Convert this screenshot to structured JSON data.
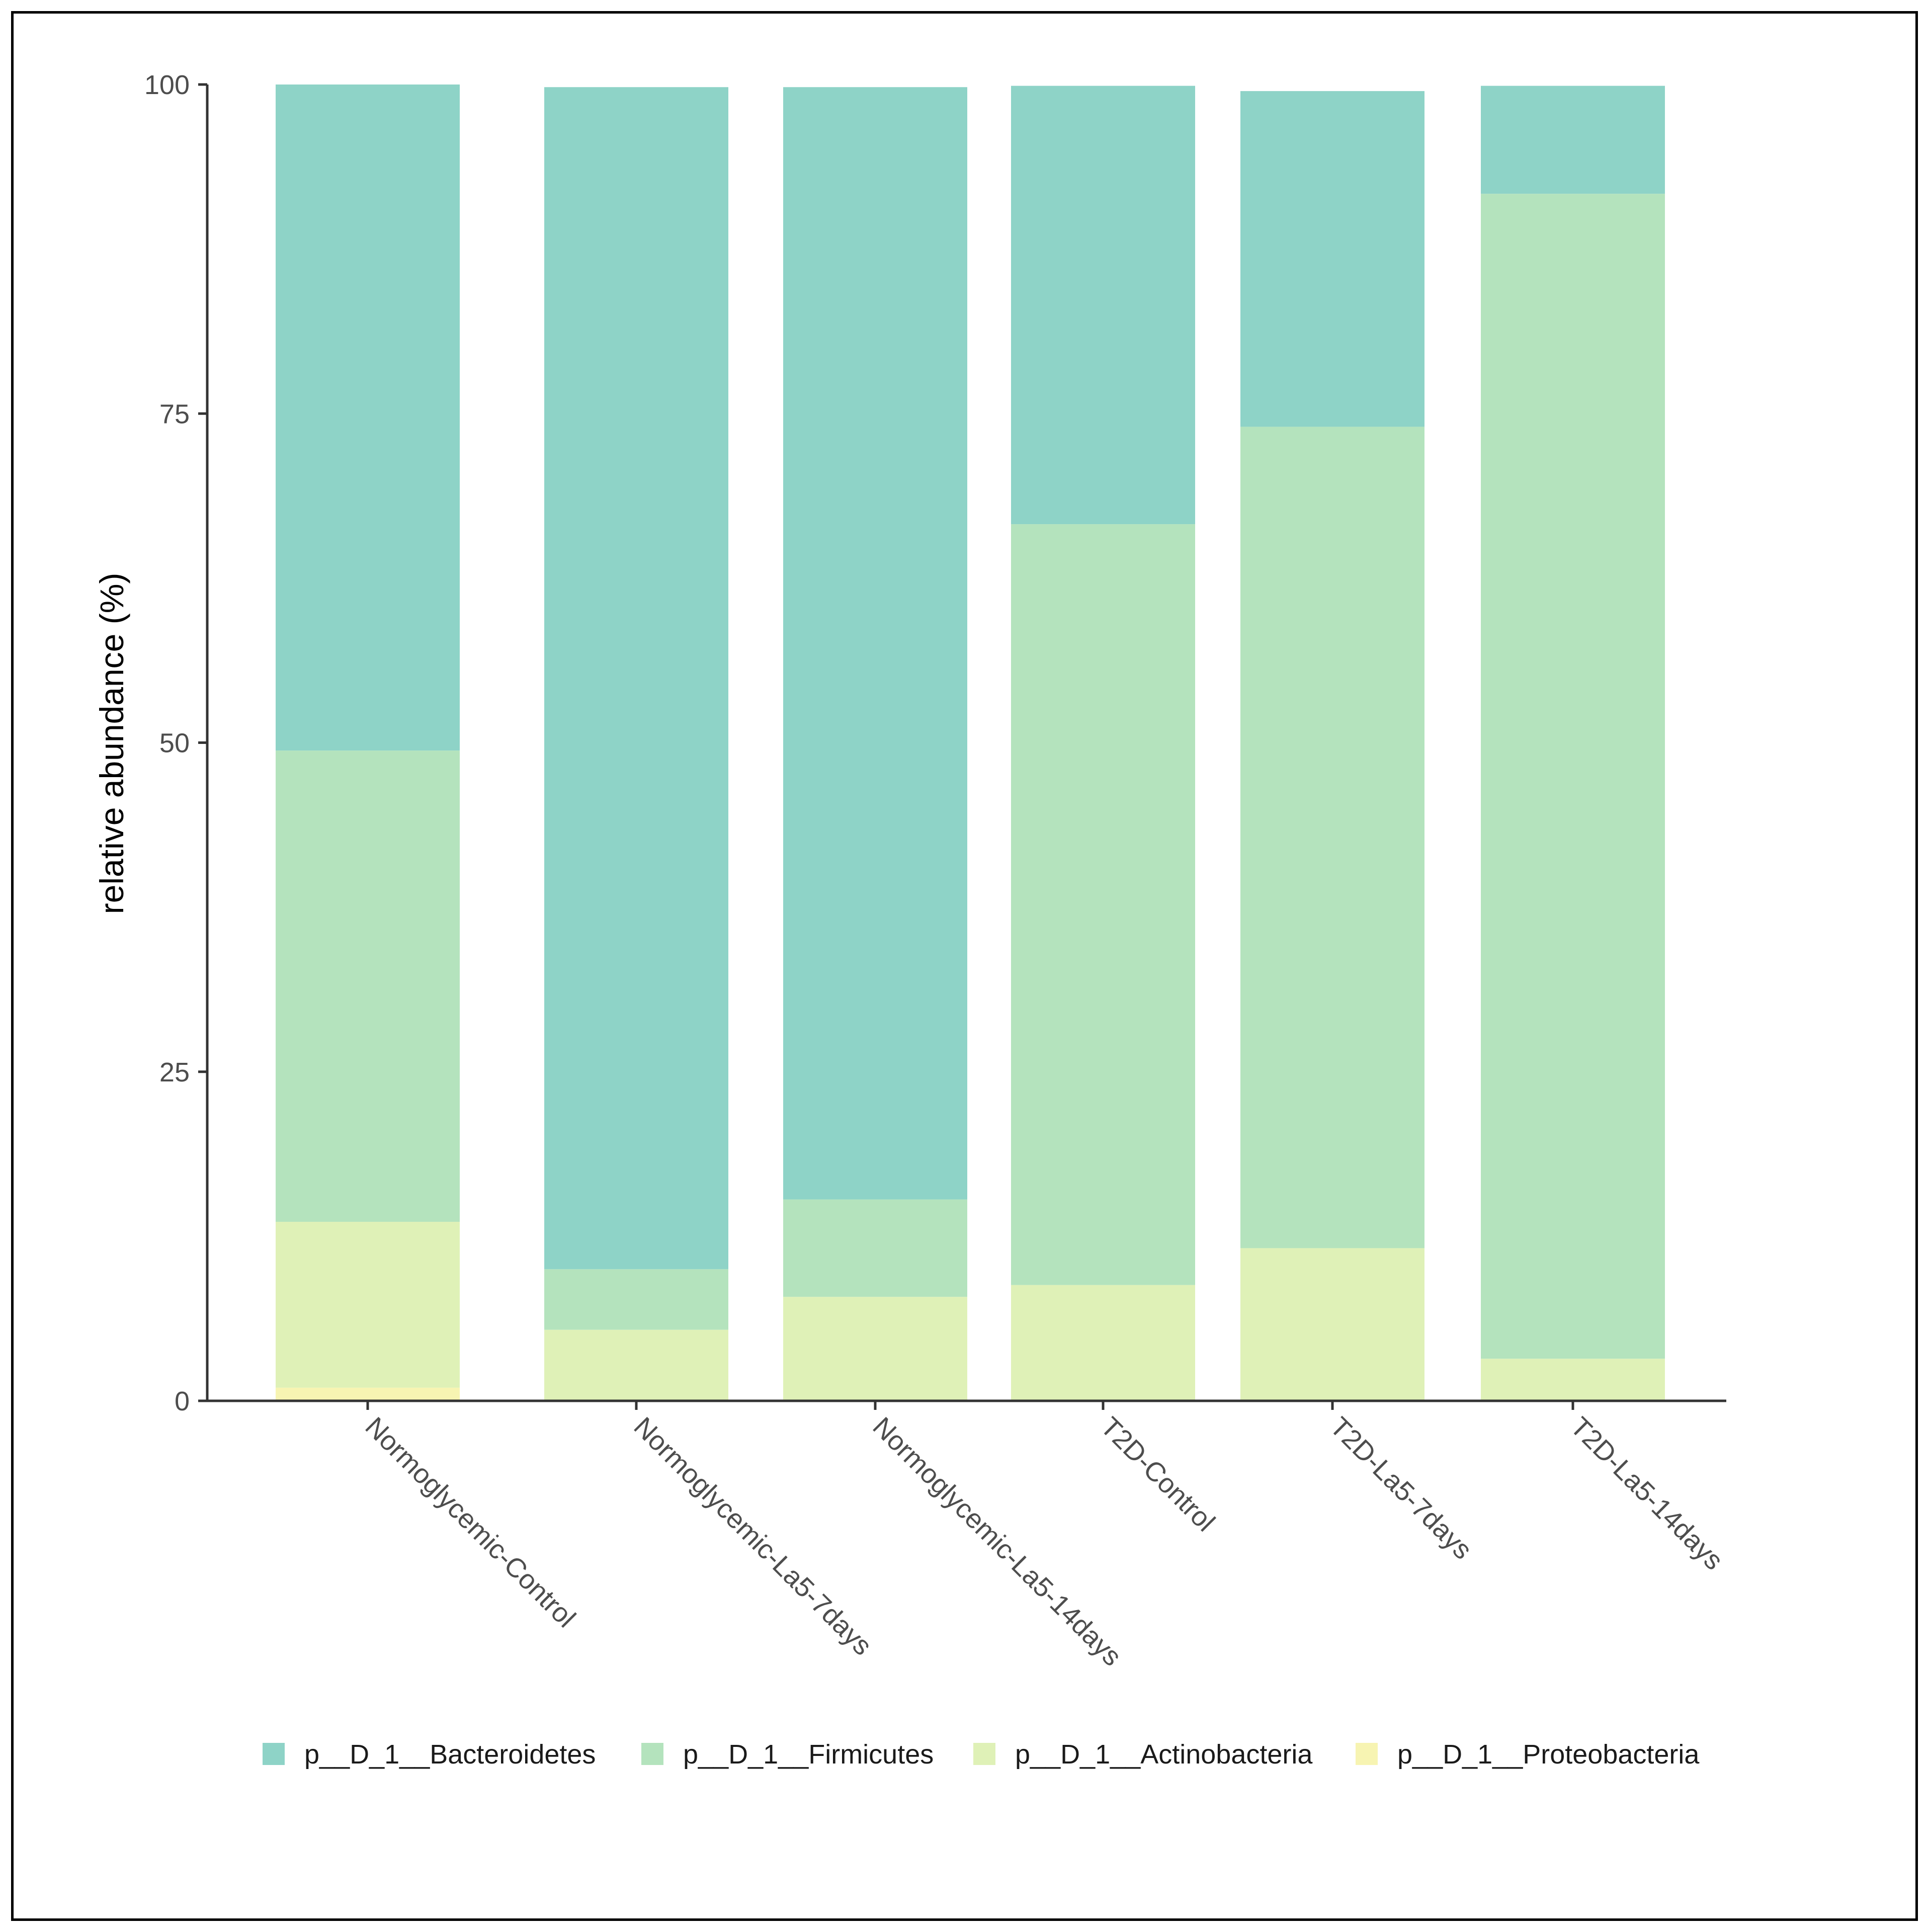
{
  "chart_data": {
    "type": "bar",
    "stacked": true,
    "ylabel": "relative abundance (%)",
    "xlabel": "",
    "ylim": [
      0,
      100
    ],
    "yticks": [
      "0",
      "25",
      "50",
      "75",
      "100"
    ],
    "yticks_values": [
      0,
      25,
      50,
      75,
      100
    ],
    "categories": [
      "Normoglycemic-Control",
      "Normoglycemic-La5-7days",
      "Normoglycemic-La5-14days",
      "T2D-Control",
      "T2D-La5-7days",
      "T2D-La5-14days"
    ],
    "series": [
      {
        "name": "p__D_1__Bacteroidetes",
        "color": "#8ed3c7",
        "values": [
          50.6,
          89.8,
          84.5,
          33.3,
          25.5,
          8.2
        ]
      },
      {
        "name": "p__D_1__Firmicutes",
        "color": "#b4e3bd",
        "values": [
          35.8,
          4.6,
          7.4,
          57.8,
          62.4,
          88.5
        ]
      },
      {
        "name": "p__D_1__Actinobacteria",
        "color": "#dff1b7",
        "values": [
          12.6,
          5.4,
          7.9,
          8.8,
          11.6,
          3.2
        ]
      },
      {
        "name": "p__D_1__Proteobacteria",
        "color": "#f7f4b2",
        "values": [
          1.0,
          0.0,
          0.0,
          0.0,
          0.0,
          0.0
        ]
      }
    ],
    "legend_position": "bottom",
    "grid": false
  }
}
